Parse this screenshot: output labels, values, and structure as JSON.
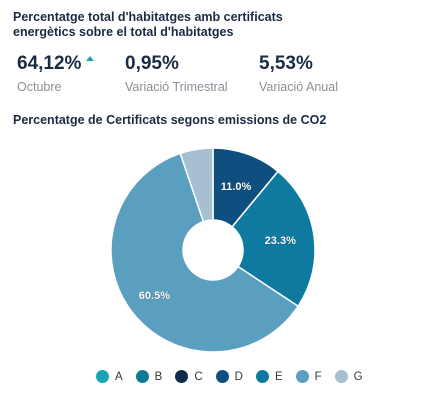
{
  "header": {
    "title": "Percentatge total d'habitatges amb certificats energètics sobre el total d'habitatges"
  },
  "kpis": [
    {
      "value": "64,12%",
      "label": "Octubre",
      "trend_icon": "triangle-up-icon",
      "trend_color": "#1aa3b5"
    },
    {
      "value": "0,95%",
      "label": "Variació Trimestral"
    },
    {
      "value": "5,53%",
      "label": "Variació Anual"
    }
  ],
  "chart_data": {
    "type": "pie",
    "variant": "donut",
    "title": "Percentatge de Certificats segons emissions de CO2",
    "start_angle_deg": 0,
    "direction": "clockwise",
    "categories": [
      "A",
      "B",
      "C",
      "D",
      "E",
      "F",
      "G"
    ],
    "values": [
      0,
      0,
      0,
      11.0,
      23.3,
      60.5,
      5.2
    ],
    "data_labels": [
      "",
      "",
      "",
      "11.0%",
      "23.3%",
      "60.5%",
      ""
    ],
    "colors": [
      "#1aa3b5",
      "#0f7a93",
      "#102c4c",
      "#0f4f80",
      "#0e7aa0",
      "#5a9fbf",
      "#a6bfd1"
    ],
    "legend_position": "bottom"
  }
}
